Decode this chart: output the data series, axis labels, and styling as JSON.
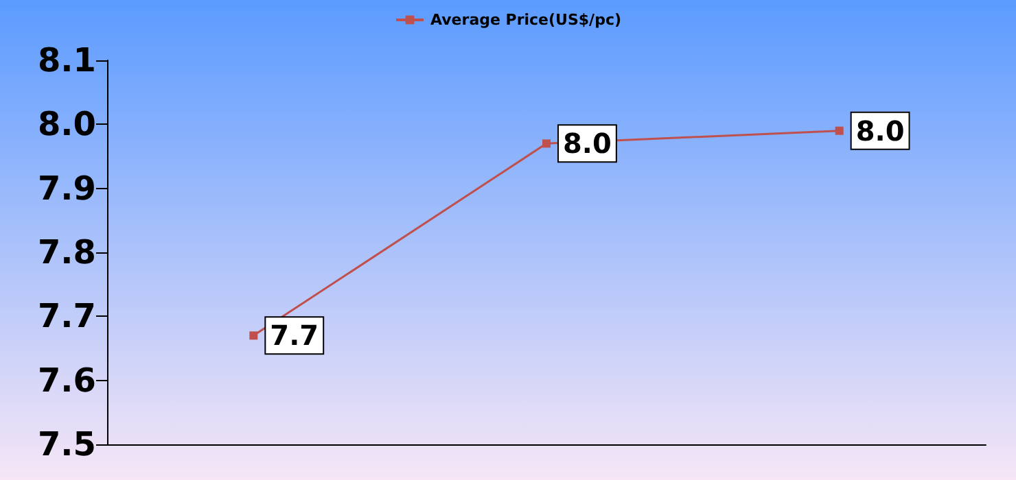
{
  "chart_data": {
    "type": "line",
    "categories": [
      null,
      null,
      null
    ],
    "series": [
      {
        "name": "Average Price(US$/pc)",
        "color": "#c0504d",
        "values": [
          7.67,
          7.97,
          7.99
        ],
        "value_labels": [
          "7.7",
          "8.0",
          "8.0"
        ]
      }
    ],
    "ylim": [
      7.5,
      8.1
    ],
    "yticks": [
      "7.5",
      "7.6",
      "7.7",
      "7.8",
      "7.9",
      "8.0",
      "8.1"
    ],
    "grid": false,
    "legend": "top",
    "marker": "square"
  }
}
